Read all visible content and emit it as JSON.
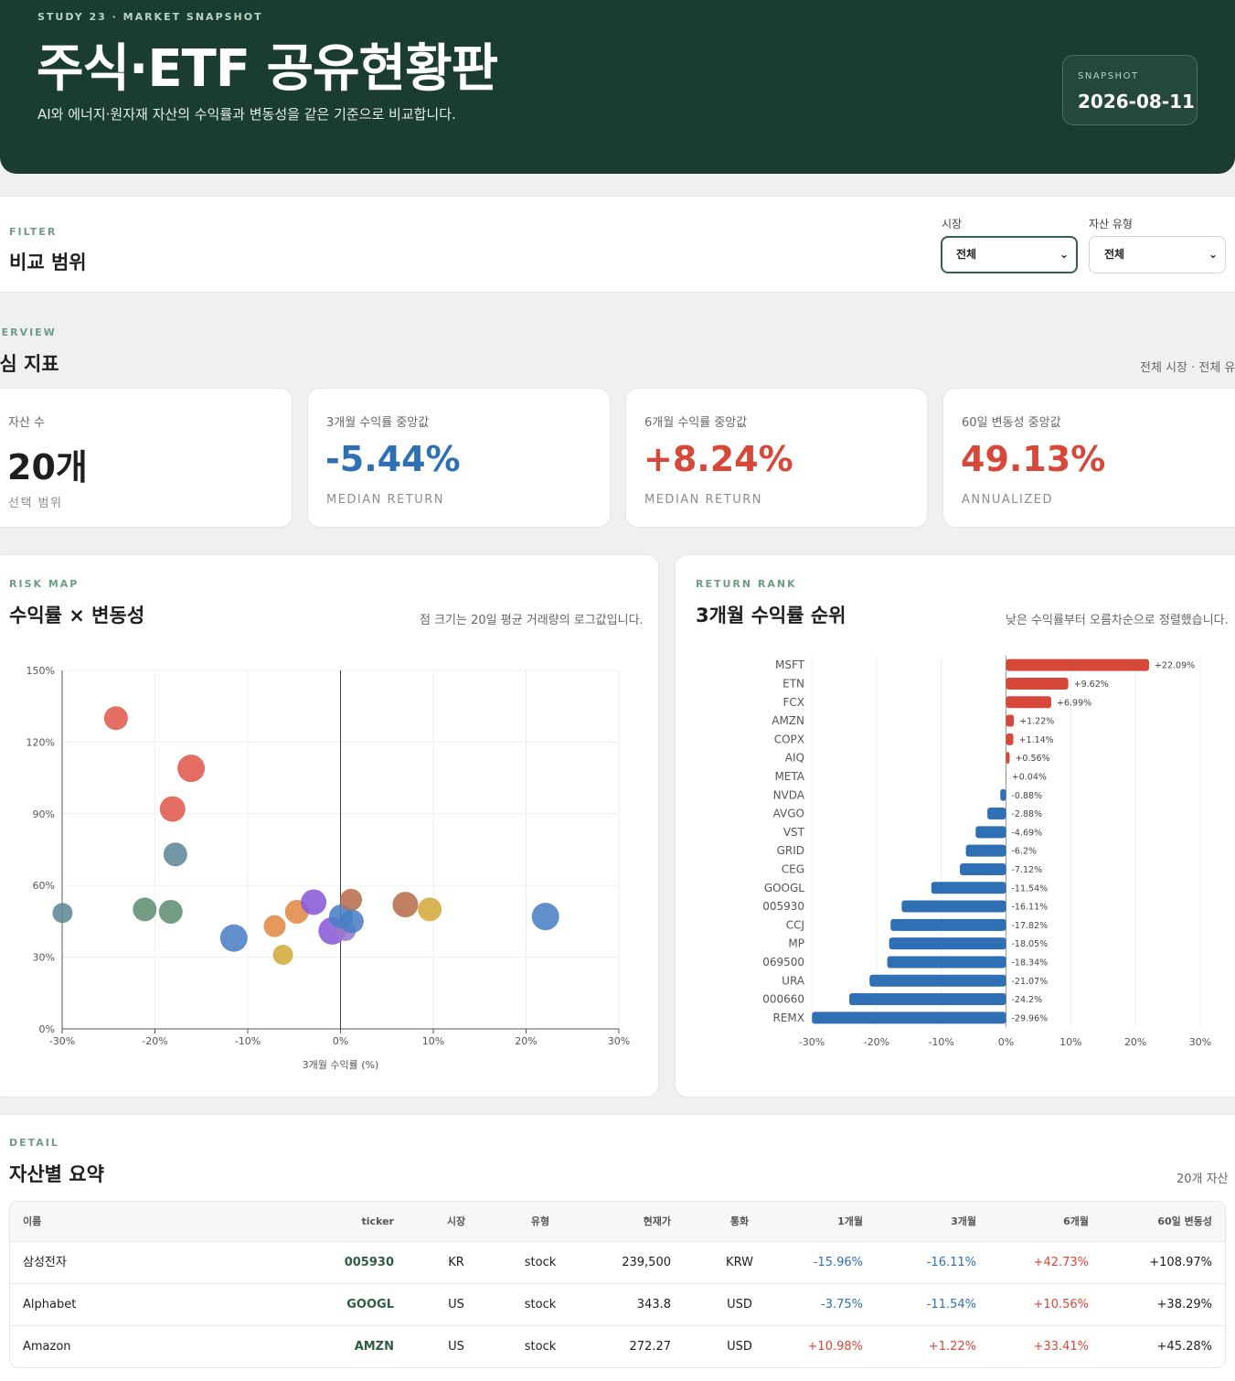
{
  "hero": {
    "eyebrow": "STUDY 23 · MARKET SNAPSHOT",
    "title": "주식·ETF 공유현황판",
    "subtitle": "AI와 에너지·원자재 자산의 수익률과 변동성을 같은 기준으로 비교합니다.",
    "snapshot_label": "SNAPSHOT",
    "snapshot_date": "2026-08-11"
  },
  "filter": {
    "eyebrow": "FILTER",
    "title": "비교 범위",
    "market_label": "시장",
    "market_value": "전체",
    "type_label": "자산 유형",
    "type_value": "전체"
  },
  "overview": {
    "eyebrow": "OVERVIEW",
    "title": "핵심 지표",
    "note": "전체 시장 · 전체 유형"
  },
  "kpis": [
    {
      "label": "자산 수",
      "value": "20개",
      "foot": "선택 범위",
      "color": "#1c1f1d"
    },
    {
      "label": "3개월 수익률 중앙값",
      "value": "-5.44%",
      "foot": "MEDIAN RETURN",
      "color": "#2f6fb4"
    },
    {
      "label": "6개월 수익률 중앙값",
      "value": "+8.24%",
      "foot": "MEDIAN RETURN",
      "color": "#d6483a"
    },
    {
      "label": "60일 변동성 중앙값",
      "value": "49.13%",
      "foot": "ANNUALIZED",
      "color": "#d6483a"
    }
  ],
  "risk_map": {
    "eyebrow": "RISK MAP",
    "title": "수익률 × 변동성",
    "note": "점 크기는 20일 평균 거래량의 로그값입니다."
  },
  "return_rank": {
    "eyebrow": "RETURN RANK",
    "title": "3개월 수익률 순위",
    "note": "낮은 수익률부터 오름차순으로 정렬했습니다."
  },
  "chart_data": [
    {
      "type": "scatter",
      "xlabel": "3개월 수익률 (%)",
      "ylabel": "",
      "xlim": [
        -30,
        30
      ],
      "ylim": [
        0,
        150
      ],
      "x_ticks": [
        "-30%",
        "-20%",
        "-10%",
        "0%",
        "10%",
        "20%",
        "30%"
      ],
      "y_ticks": [
        "0%",
        "30%",
        "60%",
        "90%",
        "120%",
        "150%"
      ],
      "grid": true,
      "points": [
        {
          "x": -24.2,
          "y": 130,
          "r": 13,
          "color": "#e05a4c"
        },
        {
          "x": -16.1,
          "y": 109,
          "r": 15,
          "color": "#e05a4c"
        },
        {
          "x": -18.1,
          "y": 92,
          "r": 14,
          "color": "#e05a4c"
        },
        {
          "x": -17.8,
          "y": 73,
          "r": 13,
          "color": "#5f8796"
        },
        {
          "x": -29.96,
          "y": 48.5,
          "r": 11,
          "color": "#5f8796"
        },
        {
          "x": -21.1,
          "y": 50,
          "r": 13,
          "color": "#5e8f73"
        },
        {
          "x": -18.3,
          "y": 49,
          "r": 13,
          "color": "#5e8f73"
        },
        {
          "x": -11.5,
          "y": 38,
          "r": 15,
          "color": "#4a7fc5"
        },
        {
          "x": -7.1,
          "y": 43,
          "r": 12,
          "color": "#e08a45"
        },
        {
          "x": -4.7,
          "y": 49,
          "r": 13,
          "color": "#e08a45"
        },
        {
          "x": -6.2,
          "y": 31,
          "r": 11,
          "color": "#d4aa3c"
        },
        {
          "x": -2.9,
          "y": 53,
          "r": 14,
          "color": "#8a5ad8"
        },
        {
          "x": -0.9,
          "y": 41,
          "r": 15,
          "color": "#8a5ad8"
        },
        {
          "x": 0.56,
          "y": 41,
          "r": 11,
          "color": "#9b7ad0"
        },
        {
          "x": 0.04,
          "y": 47,
          "r": 13,
          "color": "#4a7fc5"
        },
        {
          "x": 1.14,
          "y": 54,
          "r": 12,
          "color": "#b86d4b"
        },
        {
          "x": 1.22,
          "y": 45,
          "r": 13,
          "color": "#4a7fc5"
        },
        {
          "x": 6.99,
          "y": 52,
          "r": 14,
          "color": "#b86d4b"
        },
        {
          "x": 9.62,
          "y": 50,
          "r": 13,
          "color": "#d4aa3c"
        },
        {
          "x": 22.09,
          "y": 47,
          "r": 15,
          "color": "#4a7fc5"
        }
      ]
    },
    {
      "type": "bar",
      "orientation": "horizontal",
      "xlim": [
        -30,
        30
      ],
      "x_ticks": [
        "-30%",
        "-20%",
        "-10%",
        "0%",
        "10%",
        "20%",
        "30%"
      ],
      "categories": [
        "MSFT",
        "ETN",
        "FCX",
        "AMZN",
        "COPX",
        "AIQ",
        "META",
        "NVDA",
        "AVGO",
        "VST",
        "GRID",
        "CEG",
        "GOOGL",
        "005930",
        "CCJ",
        "MP",
        "069500",
        "URA",
        "000660",
        "REMX"
      ],
      "values": [
        22.09,
        9.62,
        6.99,
        1.22,
        1.14,
        0.56,
        0.04,
        -0.88,
        -2.88,
        -4.69,
        -6.2,
        -7.12,
        -11.54,
        -16.11,
        -17.82,
        -18.05,
        -18.34,
        -21.07,
        -24.2,
        -29.96
      ],
      "labels": [
        "+22.09%",
        "+9.62%",
        "+6.99%",
        "+1.22%",
        "+1.14%",
        "+0.56%",
        "+0.04%",
        "-0.88%",
        "-2.88%",
        "-4.69%",
        "-6.2%",
        "-7.12%",
        "-11.54%",
        "-16.11%",
        "-17.82%",
        "-18.05%",
        "-18.34%",
        "-21.07%",
        "-24.2%",
        "-29.96%"
      ],
      "positive_color": "#d6483a",
      "negative_color": "#2f6fb4"
    }
  ],
  "detail": {
    "eyebrow": "DETAIL",
    "title": "자산별 요약",
    "note": "20개 자산",
    "columns": [
      "이름",
      "ticker",
      "시장",
      "유형",
      "현재가",
      "통화",
      "1개월",
      "3개월",
      "6개월",
      "60일 변동성"
    ],
    "rows": [
      {
        "name": "삼성전자",
        "ticker": "005930",
        "market": "KR",
        "type": "stock",
        "price": "239,500",
        "currency": "KRW",
        "m1": "-15.96%",
        "m3": "-16.11%",
        "m6": "+42.73%",
        "vol": "+108.97%"
      },
      {
        "name": "Alphabet",
        "ticker": "GOOGL",
        "market": "US",
        "type": "stock",
        "price": "343.8",
        "currency": "USD",
        "m1": "-3.75%",
        "m3": "-11.54%",
        "m6": "+10.56%",
        "vol": "+38.29%"
      },
      {
        "name": "Amazon",
        "ticker": "AMZN",
        "market": "US",
        "type": "stock",
        "price": "272.27",
        "currency": "USD",
        "m1": "+10.98%",
        "m3": "+1.22%",
        "m6": "+33.41%",
        "vol": "+45.28%"
      }
    ]
  }
}
